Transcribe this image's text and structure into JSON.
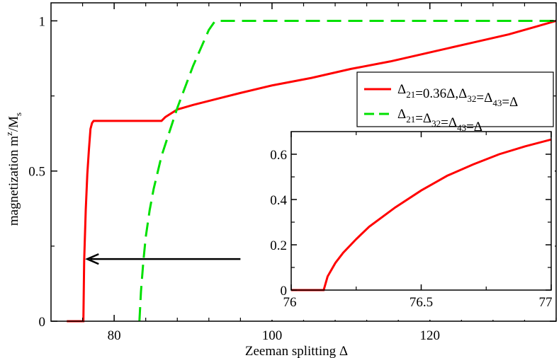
{
  "chart_data": [
    {
      "type": "line",
      "title": "",
      "xlabel": "Zeeman splitting Δ",
      "ylabel": "magnetization m^z/M_s",
      "ylabel_parts": {
        "base": "magnetization m",
        "sup": "z",
        "mid": "/M",
        "sub": "s"
      },
      "xlim": [
        72,
        136
      ],
      "ylim": [
        0,
        1.06
      ],
      "x_ticks": [
        80,
        100,
        120
      ],
      "x_tick_labels": [
        "80",
        "100",
        "120"
      ],
      "y_ticks": [
        0,
        0.5,
        1
      ],
      "y_tick_labels": [
        "0",
        "0.5",
        "1"
      ],
      "grid": false,
      "legend": "upper-right",
      "series": [
        {
          "name": "Δ21=0.36Δ,Δ32=Δ43=Δ",
          "legend_parts": [
            [
              "Δ",
              "21"
            ],
            [
              "=0.36Δ,Δ",
              "32"
            ],
            [
              "=Δ",
              "43"
            ],
            [
              "=Δ",
              ""
            ]
          ],
          "color": "#ff0000",
          "style": "solid",
          "x": [
            74,
            76.1,
            76.1,
            76.2,
            76.4,
            76.6,
            76.8,
            77,
            77.2,
            77.4,
            77.6,
            86,
            86.5,
            88,
            90,
            93,
            96,
            100,
            105,
            110,
            115,
            120,
            125,
            130,
            136
          ],
          "y": [
            0,
            0,
            0,
            0.2,
            0.37,
            0.49,
            0.57,
            0.64,
            0.66,
            0.667,
            0.667,
            0.667,
            0.68,
            0.705,
            0.72,
            0.74,
            0.76,
            0.785,
            0.81,
            0.84,
            0.865,
            0.895,
            0.925,
            0.955,
            1.0
          ]
        },
        {
          "name": "Δ21=Δ32=Δ43=Δ",
          "legend_parts": [
            [
              "Δ",
              "21"
            ],
            [
              "=Δ",
              "32"
            ],
            [
              "=Δ",
              "43"
            ],
            [
              "=Δ",
              ""
            ]
          ],
          "color": "#00e000",
          "style": "dashed",
          "x": [
            83.2,
            83.4,
            83.7,
            84,
            84.5,
            85,
            86,
            87,
            88,
            89,
            90,
            91,
            92,
            92.8,
            100,
            110,
            120,
            130,
            136
          ],
          "y": [
            0,
            0.1,
            0.2,
            0.28,
            0.37,
            0.44,
            0.55,
            0.63,
            0.71,
            0.78,
            0.85,
            0.91,
            0.97,
            1.0,
            1.0,
            1.0,
            1.0,
            1.0,
            1.0
          ]
        }
      ],
      "annotations": [
        {
          "type": "arrow",
          "from": [
            96,
            0.207
          ],
          "to": [
            76.6,
            0.207
          ],
          "color": "#000000"
        }
      ]
    },
    {
      "type": "line",
      "title": "",
      "xlabel": "",
      "ylabel": "",
      "xlim": [
        76,
        77
      ],
      "ylim": [
        0,
        0.7
      ],
      "x_ticks": [
        76,
        76.5,
        77
      ],
      "x_tick_labels": [
        "76",
        "76.5",
        "77"
      ],
      "y_ticks": [
        0,
        0.2,
        0.4,
        0.6
      ],
      "y_tick_labels": [
        "0",
        "0.2",
        "0.4",
        "0.6"
      ],
      "grid": false,
      "inset": true,
      "series": [
        {
          "color": "#ff0000",
          "style": "solid",
          "x": [
            76,
            76.12,
            76.125,
            76.14,
            76.17,
            76.2,
            76.25,
            76.3,
            76.4,
            76.5,
            76.6,
            76.7,
            76.8,
            76.9,
            77
          ],
          "y": [
            0,
            0,
            0,
            0.06,
            0.12,
            0.165,
            0.225,
            0.28,
            0.365,
            0.44,
            0.505,
            0.555,
            0.6,
            0.635,
            0.665
          ]
        }
      ]
    }
  ]
}
